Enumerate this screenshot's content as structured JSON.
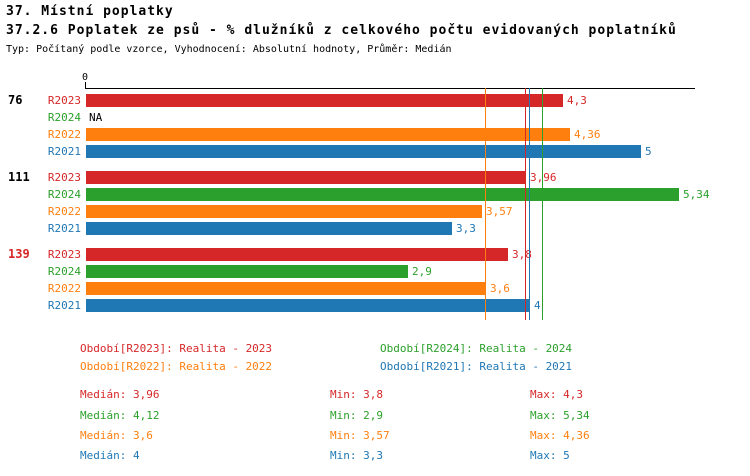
{
  "header": {
    "title": "37. Místní poplatky",
    "subtitle": "37.2.6 Poplatek ze psů - % dlužníků z celkového počtu evidovaných poplatníků",
    "meta": "Typ: Počítaný podle vzorce, Vyhodnocení: Absolutní hodnoty, Průměr: Medián"
  },
  "chart_data": {
    "type": "bar",
    "orientation": "horizontal",
    "title": "37.2.6 Poplatek ze psů - % dlužníků z celkového počtu evidovaných poplatníků",
    "xlim": [
      0,
      5.45
    ],
    "axis_zero_label": "0",
    "grid": false,
    "series_order": [
      "R2023",
      "R2024",
      "R2022",
      "R2021"
    ],
    "series_colors": {
      "R2023": "#d62728",
      "R2024": "#2ca02c",
      "R2022": "#ff7f0e",
      "R2021": "#1f77b4"
    },
    "groups": [
      {
        "label": "76",
        "label_color": "#000000",
        "bars": [
          {
            "series": "R2023",
            "value": 4.3,
            "display": "4,3"
          },
          {
            "series": "R2024",
            "value": null,
            "display": "NA"
          },
          {
            "series": "R2022",
            "value": 4.36,
            "display": "4,36"
          },
          {
            "series": "R2021",
            "value": 5,
            "display": "5"
          }
        ]
      },
      {
        "label": "111",
        "label_color": "#000000",
        "bars": [
          {
            "series": "R2023",
            "value": 3.96,
            "display": "3,96"
          },
          {
            "series": "R2024",
            "value": 5.34,
            "display": "5,34"
          },
          {
            "series": "R2022",
            "value": 3.57,
            "display": "3,57"
          },
          {
            "series": "R2021",
            "value": 3.3,
            "display": "3,3"
          }
        ]
      },
      {
        "label": "139",
        "label_color": "#d62728",
        "bars": [
          {
            "series": "R2023",
            "value": 3.8,
            "display": "3,8"
          },
          {
            "series": "R2024",
            "value": 2.9,
            "display": "2,9"
          },
          {
            "series": "R2022",
            "value": 3.6,
            "display": "3,6"
          },
          {
            "series": "R2021",
            "value": 4,
            "display": "4"
          }
        ]
      }
    ],
    "median_lines": [
      {
        "series": "R2022",
        "value": 3.6
      },
      {
        "series": "R2023",
        "value": 3.96
      },
      {
        "series": "R2021",
        "value": 4
      },
      {
        "series": "R2024",
        "value": 4.12
      }
    ]
  },
  "legend": [
    {
      "series": "R2023",
      "label": "Období[R2023]: Realita - 2023"
    },
    {
      "series": "R2024",
      "label": "Období[R2024]: Realita - 2024"
    },
    {
      "series": "R2022",
      "label": "Období[R2022]: Realita - 2022"
    },
    {
      "series": "R2021",
      "label": "Období[R2021]: Realita - 2021"
    }
  ],
  "stats": [
    {
      "series": "R2023",
      "median": "Medián: 3,96",
      "min": "Min: 3,8",
      "max": "Max: 4,3"
    },
    {
      "series": "R2024",
      "median": "Medián: 4,12",
      "min": "Min: 2,9",
      "max": "Max: 5,34"
    },
    {
      "series": "R2022",
      "median": "Medián: 3,6",
      "min": "Min: 3,57",
      "max": "Max: 4,36"
    },
    {
      "series": "R2021",
      "median": "Medián: 4",
      "min": "Min: 3,3",
      "max": "Max: 5"
    }
  ]
}
